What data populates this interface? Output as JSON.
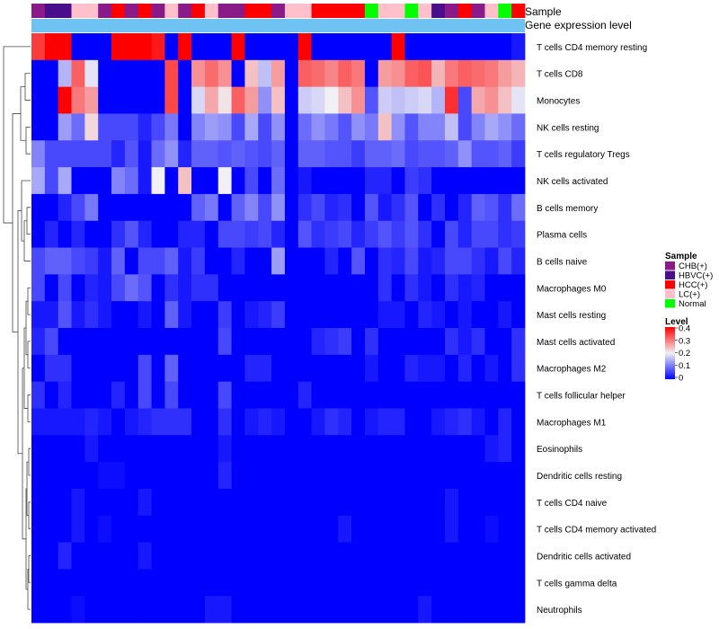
{
  "chart_data": {
    "type": "heatmap",
    "title": "",
    "annotation_rows": [
      "Sample",
      "Gene expression level"
    ],
    "sample_groups": [
      "CHB(+)",
      "HBVC(+)",
      "HCC(+)",
      "LC(+)",
      "Normal"
    ],
    "sample_colors": {
      "CHB(+)": "#8B1A89",
      "HBVC(+)": "#4B0E8A",
      "HCC(+)": "#FF0000",
      "LC(+)": "#FFC0CB",
      "Normal": "#00FF00"
    },
    "samples": [
      "CHB(+)",
      "HBVC(+)",
      "HBVC(+)",
      "LC(+)",
      "LC(+)",
      "CHB(+)",
      "HCC(+)",
      "CHB(+)",
      "HCC(+)",
      "CHB(+)",
      "LC(+)",
      "CHB(+)",
      "HCC(+)",
      "LC(+)",
      "CHB(+)",
      "CHB(+)",
      "HCC(+)",
      "HCC(+)",
      "CHB(+)",
      "LC(+)",
      "LC(+)",
      "HCC(+)",
      "HCC(+)",
      "HCC(+)",
      "HCC(+)",
      "Normal",
      "LC(+)",
      "LC(+)",
      "Normal",
      "LC(+)",
      "HBVC(+)",
      "CHB(+)",
      "HCC(+)",
      "CHB(+)",
      "LC(+)",
      "Normal",
      "HCC(+)"
    ],
    "gene_expression_level_color": "#6EC3F2",
    "rows": [
      "T cells CD4 memory resting",
      "T cells CD8",
      "Monocytes",
      "NK cells resting",
      "T cells regulatory  Tregs",
      "NK cells activated",
      "B cells memory",
      "Plasma cells",
      "B cells naive",
      "Macrophages M0",
      "Mast cells resting",
      "Mast cells activated",
      "Macrophages M2",
      "T cells follicular helper",
      "Macrophages M1",
      "Eosinophils",
      "Dendritic cells resting",
      "T cells CD4 naive",
      "T cells CD4 memory activated",
      "Dendritic cells activated",
      "T cells gamma delta",
      "Neutrophils"
    ],
    "values": [
      [
        0.35,
        0.4,
        0.4,
        0,
        0,
        0,
        0.4,
        0.4,
        0.4,
        0.38,
        0,
        0.4,
        0,
        0,
        0,
        0.4,
        0,
        0,
        0,
        0,
        0.4,
        0,
        0,
        0,
        0,
        0,
        0,
        0.4,
        0,
        0,
        0,
        0,
        0,
        0,
        0,
        0,
        0.02
      ],
      [
        0,
        0,
        0.15,
        0.32,
        0.19,
        0,
        0,
        0,
        0,
        0,
        0.34,
        0,
        0.28,
        0.31,
        0.28,
        0,
        0.24,
        0.16,
        0.27,
        0,
        0.32,
        0.31,
        0.29,
        0.32,
        0.3,
        0,
        0.27,
        0.28,
        0.32,
        0.33,
        0.25,
        0.3,
        0.32,
        0.31,
        0.3,
        0.27,
        0.25
      ],
      [
        0,
        0,
        0.4,
        0.3,
        0.27,
        0,
        0,
        0,
        0,
        0,
        0.34,
        0,
        0.18,
        0.26,
        0.21,
        0.32,
        0.27,
        0.12,
        0.24,
        0,
        0.17,
        0.18,
        0.2,
        0.24,
        0.28,
        0.07,
        0.17,
        0.16,
        0.17,
        0.18,
        0.15,
        0.36,
        0.06,
        0.26,
        0.28,
        0.24,
        0.19
      ],
      [
        0,
        0,
        0.13,
        0.09,
        0.22,
        0.06,
        0.06,
        0.06,
        0.03,
        0.06,
        0.1,
        0,
        0.11,
        0.13,
        0.12,
        0.06,
        0.14,
        0.06,
        0.12,
        0,
        0.09,
        0.12,
        0.1,
        0.07,
        0.12,
        0.1,
        0.24,
        0.12,
        0.07,
        0.11,
        0.11,
        0.16,
        0.06,
        0.11,
        0.14,
        0.12,
        0.09
      ],
      [
        0.11,
        0.06,
        0.06,
        0.06,
        0.06,
        0.06,
        0.03,
        0.07,
        0.02,
        0.09,
        0.12,
        0.03,
        0.08,
        0.08,
        0.07,
        0.08,
        0.07,
        0.06,
        0.08,
        0,
        0.08,
        0.08,
        0.07,
        0.07,
        0.05,
        0.08,
        0.08,
        0.09,
        0.06,
        0.07,
        0.07,
        0.08,
        0.12,
        0.07,
        0.07,
        0.08,
        0.05
      ],
      [
        0.14,
        0.06,
        0.14,
        0,
        0,
        0,
        0.11,
        0.09,
        0.02,
        0.2,
        0,
        0.24,
        0,
        0,
        0.2,
        0,
        0.06,
        0,
        0.09,
        0,
        0.02,
        0,
        0,
        0,
        0,
        0.03,
        0.03,
        0,
        0.05,
        0.04,
        0,
        0,
        0,
        0,
        0,
        0,
        0
      ],
      [
        0,
        0,
        0.03,
        0.06,
        0.1,
        0,
        0,
        0,
        0,
        0,
        0,
        0,
        0.08,
        0.1,
        0,
        0.08,
        0.11,
        0.06,
        0.12,
        0,
        0.04,
        0.06,
        0.03,
        0.04,
        0,
        0.07,
        0.02,
        0.04,
        0.07,
        0,
        0.04,
        0,
        0.03,
        0.08,
        0.07,
        0.04,
        0.09
      ],
      [
        0,
        0.03,
        0,
        0.03,
        0,
        0,
        0.04,
        0.07,
        0.03,
        0,
        0,
        0.03,
        0.03,
        0,
        0.06,
        0.06,
        0.05,
        0.06,
        0.03,
        0,
        0.07,
        0.04,
        0.05,
        0.06,
        0.03,
        0.05,
        0.07,
        0.05,
        0.07,
        0.04,
        0,
        0.06,
        0.03,
        0.06,
        0.06,
        0.04,
        0.05
      ],
      [
        0.06,
        0.08,
        0.08,
        0.06,
        0.05,
        0.02,
        0.08,
        0,
        0.06,
        0.06,
        0.08,
        0.02,
        0.05,
        0,
        0,
        0.03,
        0,
        0,
        0.13,
        0,
        0,
        0,
        0.03,
        0,
        0.07,
        0,
        0.04,
        0.03,
        0.06,
        0.02,
        0.03,
        0.06,
        0.06,
        0.04,
        0.02,
        0.06,
        0.03
      ],
      [
        0.06,
        0,
        0.06,
        0,
        0.03,
        0.02,
        0.06,
        0.09,
        0.07,
        0,
        0.04,
        0.02,
        0.04,
        0.04,
        0,
        0,
        0,
        0,
        0,
        0,
        0,
        0,
        0,
        0,
        0,
        0,
        0.04,
        0,
        0.04,
        0.02,
        0,
        0.04,
        0.02,
        0.03,
        0,
        0,
        0
      ],
      [
        0.02,
        0.02,
        0.07,
        0.02,
        0.04,
        0.02,
        0,
        0,
        0.02,
        0,
        0.08,
        0.02,
        0,
        0,
        0.05,
        0,
        0.02,
        0.03,
        0.05,
        0,
        0,
        0,
        0,
        0,
        0,
        0,
        0.02,
        0.02,
        0,
        0.03,
        0.02,
        0,
        0.02,
        0,
        0,
        0.02,
        0
      ],
      [
        0.03,
        0.06,
        0,
        0,
        0,
        0,
        0,
        0,
        0,
        0,
        0,
        0,
        0,
        0,
        0.06,
        0,
        0,
        0,
        0,
        0,
        0,
        0.03,
        0.04,
        0.05,
        0,
        0.04,
        0,
        0,
        0,
        0,
        0,
        0.04,
        0.02,
        0.04,
        0,
        0,
        0.04
      ],
      [
        0,
        0.04,
        0.04,
        0,
        0,
        0,
        0,
        0,
        0.06,
        0,
        0.08,
        0,
        0,
        0,
        0,
        0,
        0.03,
        0.03,
        0,
        0,
        0,
        0,
        0,
        0,
        0,
        0.02,
        0,
        0,
        0.03,
        0.02,
        0.02,
        0,
        0.03,
        0,
        0.02,
        0,
        0.04
      ],
      [
        0.04,
        0,
        0.03,
        0,
        0,
        0,
        0.03,
        0,
        0.06,
        0,
        0.06,
        0,
        0,
        0,
        0.06,
        0,
        0,
        0,
        0,
        0,
        0.03,
        0,
        0,
        0,
        0,
        0,
        0,
        0,
        0,
        0,
        0,
        0,
        0,
        0,
        0,
        0,
        0
      ],
      [
        0.02,
        0.02,
        0.02,
        0.02,
        0.03,
        0.02,
        0,
        0.02,
        0.03,
        0.04,
        0.04,
        0.04,
        0,
        0,
        0.04,
        0,
        0.02,
        0.03,
        0.02,
        0,
        0,
        0.02,
        0.04,
        0.03,
        0,
        0.02,
        0.03,
        0.03,
        0,
        0,
        0.02,
        0.03,
        0.04,
        0.02,
        0,
        0.03,
        0
      ],
      [
        0,
        0,
        0,
        0,
        0.02,
        0,
        0,
        0,
        0,
        0,
        0,
        0,
        0,
        0,
        0.02,
        0,
        0,
        0,
        0,
        0,
        0,
        0,
        0,
        0,
        0,
        0,
        0,
        0,
        0,
        0,
        0,
        0,
        0,
        0,
        0.02,
        0.03,
        0
      ],
      [
        0,
        0,
        0,
        0,
        0,
        0.01,
        0.01,
        0,
        0,
        0,
        0,
        0,
        0,
        0,
        0.03,
        0,
        0,
        0,
        0,
        0,
        0,
        0,
        0,
        0,
        0,
        0,
        0,
        0,
        0,
        0,
        0,
        0,
        0,
        0,
        0,
        0,
        0
      ],
      [
        0,
        0,
        0,
        0.02,
        0,
        0,
        0,
        0,
        0.02,
        0,
        0,
        0,
        0,
        0,
        0,
        0,
        0,
        0,
        0,
        0,
        0,
        0,
        0,
        0,
        0,
        0,
        0,
        0,
        0,
        0,
        0,
        0.02,
        0,
        0,
        0,
        0,
        0
      ],
      [
        0,
        0,
        0,
        0.02,
        0,
        0.01,
        0,
        0,
        0,
        0,
        0,
        0,
        0,
        0,
        0,
        0,
        0,
        0,
        0,
        0,
        0,
        0,
        0,
        0.02,
        0,
        0,
        0,
        0,
        0,
        0,
        0,
        0.02,
        0,
        0,
        0.01,
        0,
        0
      ],
      [
        0,
        0,
        0.03,
        0,
        0,
        0,
        0,
        0,
        0.02,
        0,
        0,
        0,
        0,
        0,
        0,
        0,
        0,
        0,
        0,
        0,
        0,
        0,
        0,
        0,
        0,
        0,
        0,
        0,
        0,
        0,
        0,
        0,
        0,
        0,
        0,
        0,
        0
      ],
      [
        0,
        0,
        0,
        0,
        0,
        0,
        0,
        0,
        0,
        0,
        0,
        0,
        0,
        0,
        0,
        0,
        0,
        0,
        0,
        0,
        0,
        0,
        0,
        0,
        0,
        0,
        0,
        0,
        0,
        0,
        0,
        0,
        0,
        0,
        0,
        0,
        0
      ],
      [
        0,
        0,
        0,
        0.01,
        0,
        0,
        0,
        0,
        0,
        0,
        0,
        0,
        0,
        0.02,
        0.02,
        0,
        0,
        0,
        0,
        0,
        0,
        0,
        0,
        0,
        0,
        0,
        0,
        0,
        0,
        0.02,
        0,
        0,
        0,
        0,
        0,
        0,
        0
      ]
    ],
    "legend_sample_title": "Sample",
    "legend_level_title": "Level",
    "legend_level_ticks": [
      "0.4",
      "0.3",
      "0.2",
      "0.1",
      "0"
    ],
    "color_scale": {
      "min": 0,
      "mid": 0.2,
      "max": 0.4,
      "low": "#0000FF",
      "midcolor": "#F0F0F5",
      "high": "#FF0000"
    }
  }
}
